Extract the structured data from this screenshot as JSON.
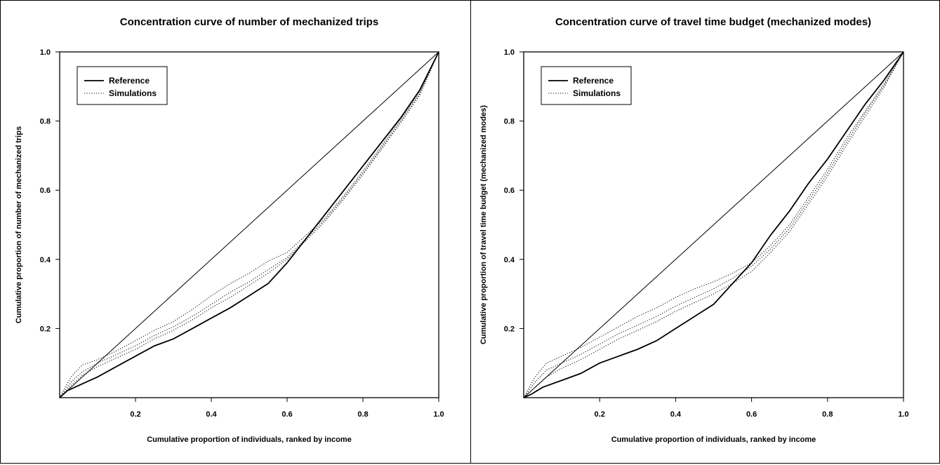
{
  "chart_data": [
    {
      "type": "line",
      "title": "Concentration curve of number of mechanized trips",
      "xlabel": "Cumulative proportion of individuals, ranked by income",
      "ylabel": "Cumulative proportion of number of mechanized trips",
      "xlim": [
        0,
        1
      ],
      "ylim": [
        0,
        1
      ],
      "x_ticks": [
        "0.2",
        "0.4",
        "0.6",
        "0.8",
        "1.0"
      ],
      "y_ticks": [
        "0.2",
        "0.4",
        "0.6",
        "0.8",
        "1.0"
      ],
      "grid": false,
      "legend_position": "top-left",
      "legend": [
        "Reference",
        "Simulations"
      ],
      "series": [
        {
          "name": "Reference",
          "style": "solid",
          "x": [
            0,
            0.02,
            0.05,
            0.1,
            0.15,
            0.2,
            0.25,
            0.3,
            0.35,
            0.4,
            0.45,
            0.5,
            0.55,
            0.6,
            0.65,
            0.7,
            0.75,
            0.8,
            0.85,
            0.9,
            0.95,
            1.0
          ],
          "y": [
            0,
            0.02,
            0.035,
            0.06,
            0.09,
            0.12,
            0.15,
            0.17,
            0.2,
            0.23,
            0.26,
            0.295,
            0.33,
            0.39,
            0.46,
            0.53,
            0.6,
            0.67,
            0.74,
            0.81,
            0.89,
            1.0
          ]
        },
        {
          "style": "dotted",
          "x": [
            0,
            0.03,
            0.06,
            0.1,
            0.15,
            0.2,
            0.25,
            0.3,
            0.35,
            0.4,
            0.45,
            0.5,
            0.55,
            0.6,
            0.65,
            0.7,
            0.75,
            0.8,
            0.85,
            0.9,
            0.95,
            1.0
          ],
          "y": [
            0,
            0.06,
            0.095,
            0.11,
            0.135,
            0.165,
            0.195,
            0.22,
            0.255,
            0.295,
            0.33,
            0.36,
            0.395,
            0.42,
            0.47,
            0.52,
            0.585,
            0.655,
            0.73,
            0.805,
            0.885,
            1.0
          ]
        },
        {
          "style": "dotted",
          "x": [
            0,
            0.03,
            0.06,
            0.1,
            0.15,
            0.2,
            0.25,
            0.3,
            0.35,
            0.4,
            0.45,
            0.5,
            0.55,
            0.6,
            0.65,
            0.7,
            0.75,
            0.8,
            0.85,
            0.9,
            0.95,
            1.0
          ],
          "y": [
            0,
            0.045,
            0.075,
            0.1,
            0.125,
            0.15,
            0.18,
            0.205,
            0.235,
            0.27,
            0.305,
            0.335,
            0.37,
            0.405,
            0.46,
            0.515,
            0.58,
            0.65,
            0.725,
            0.8,
            0.88,
            1.0
          ]
        },
        {
          "style": "dotted",
          "x": [
            0,
            0.03,
            0.06,
            0.1,
            0.15,
            0.2,
            0.25,
            0.3,
            0.35,
            0.4,
            0.45,
            0.5,
            0.55,
            0.6,
            0.65,
            0.7,
            0.75,
            0.8,
            0.85,
            0.9,
            0.95,
            1.0
          ],
          "y": [
            0,
            0.035,
            0.065,
            0.09,
            0.115,
            0.14,
            0.17,
            0.195,
            0.225,
            0.26,
            0.29,
            0.325,
            0.36,
            0.4,
            0.455,
            0.51,
            0.575,
            0.645,
            0.72,
            0.795,
            0.875,
            1.0
          ]
        }
      ]
    },
    {
      "type": "line",
      "title": "Concentration curve of travel time budget (mechanized modes)",
      "xlabel": "Cumulative proportion of individuals, ranked by income",
      "ylabel": "Cumulative proportion of travel time budget (mechanized modes)",
      "xlim": [
        0,
        1
      ],
      "ylim": [
        0,
        1
      ],
      "x_ticks": [
        "0.2",
        "0.4",
        "0.6",
        "0.8",
        "1.0"
      ],
      "y_ticks": [
        "0.2",
        "0.4",
        "0.6",
        "0.8",
        "1.0"
      ],
      "grid": false,
      "legend_position": "top-left",
      "legend": [
        "Reference",
        "Simulations"
      ],
      "series": [
        {
          "name": "Reference",
          "style": "solid",
          "x": [
            0,
            0.02,
            0.05,
            0.1,
            0.15,
            0.2,
            0.25,
            0.3,
            0.35,
            0.4,
            0.45,
            0.5,
            0.55,
            0.6,
            0.65,
            0.7,
            0.75,
            0.8,
            0.85,
            0.9,
            0.95,
            1.0
          ],
          "y": [
            0,
            0.01,
            0.03,
            0.05,
            0.07,
            0.1,
            0.12,
            0.14,
            0.165,
            0.2,
            0.235,
            0.27,
            0.33,
            0.39,
            0.47,
            0.54,
            0.62,
            0.69,
            0.77,
            0.85,
            0.92,
            1.0
          ]
        },
        {
          "style": "dotted",
          "x": [
            0,
            0.03,
            0.06,
            0.1,
            0.15,
            0.2,
            0.25,
            0.3,
            0.35,
            0.4,
            0.45,
            0.5,
            0.55,
            0.6,
            0.65,
            0.7,
            0.75,
            0.8,
            0.85,
            0.9,
            0.95,
            1.0
          ],
          "y": [
            0,
            0.06,
            0.1,
            0.12,
            0.145,
            0.175,
            0.205,
            0.235,
            0.26,
            0.29,
            0.315,
            0.335,
            0.36,
            0.39,
            0.44,
            0.5,
            0.58,
            0.66,
            0.75,
            0.83,
            0.91,
            1.0
          ]
        },
        {
          "style": "dotted",
          "x": [
            0,
            0.03,
            0.06,
            0.1,
            0.15,
            0.2,
            0.25,
            0.3,
            0.35,
            0.4,
            0.45,
            0.5,
            0.55,
            0.6,
            0.65,
            0.7,
            0.75,
            0.8,
            0.85,
            0.9,
            0.95,
            1.0
          ],
          "y": [
            0,
            0.045,
            0.08,
            0.1,
            0.125,
            0.155,
            0.185,
            0.21,
            0.235,
            0.265,
            0.29,
            0.315,
            0.345,
            0.38,
            0.43,
            0.49,
            0.57,
            0.65,
            0.74,
            0.825,
            0.905,
            1.0
          ]
        },
        {
          "style": "dotted",
          "x": [
            0,
            0.03,
            0.06,
            0.1,
            0.15,
            0.2,
            0.25,
            0.3,
            0.35,
            0.4,
            0.45,
            0.5,
            0.55,
            0.6,
            0.65,
            0.7,
            0.75,
            0.8,
            0.85,
            0.9,
            0.95,
            1.0
          ],
          "y": [
            0,
            0.03,
            0.06,
            0.085,
            0.11,
            0.14,
            0.17,
            0.195,
            0.22,
            0.25,
            0.275,
            0.3,
            0.33,
            0.365,
            0.42,
            0.48,
            0.56,
            0.64,
            0.73,
            0.815,
            0.9,
            1.0
          ]
        }
      ]
    }
  ]
}
